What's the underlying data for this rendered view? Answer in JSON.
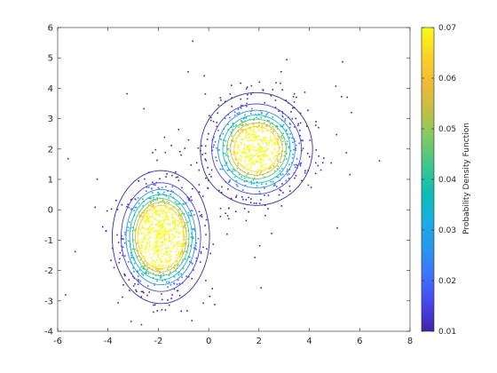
{
  "chart_data": {
    "type": "scatter",
    "title": "",
    "xlabel": "",
    "ylabel": "",
    "xlim": [
      -6,
      8
    ],
    "ylim": [
      -4,
      6
    ],
    "xticks": [
      "-6",
      "-4",
      "-2",
      "0",
      "2",
      "4",
      "6",
      "8"
    ],
    "yticks": [
      "-4",
      "-3",
      "-2",
      "-1",
      "0",
      "1",
      "2",
      "3",
      "4",
      "5",
      "6"
    ],
    "grid": false,
    "mixture_components": [
      {
        "mean": [
          -1.9,
          -0.9
        ],
        "std": [
          0.75,
          0.85
        ],
        "points": 750
      },
      {
        "mean": [
          1.9,
          2.0
        ],
        "std": [
          0.9,
          0.75
        ],
        "points": 620
      }
    ],
    "outer_points": 220,
    "contour_levels": [
      0.005,
      0.015,
      0.025,
      0.035,
      0.045,
      0.055,
      0.065
    ],
    "colorbar": {
      "label": "Probability Density Function",
      "min": 0.01,
      "max": 0.07,
      "ticks": [
        "0.01",
        "0.02",
        "0.03",
        "0.04",
        "0.05",
        "0.06",
        "0.07"
      ],
      "colormap": [
        "#3e26a8",
        "#4746eb",
        "#3f73fd",
        "#2797eb",
        "#1bade3",
        "#0cbfb3",
        "#3dc68f",
        "#7fca65",
        "#c2bf42",
        "#efbb36",
        "#f9d427",
        "#f9fb15"
      ]
    }
  }
}
